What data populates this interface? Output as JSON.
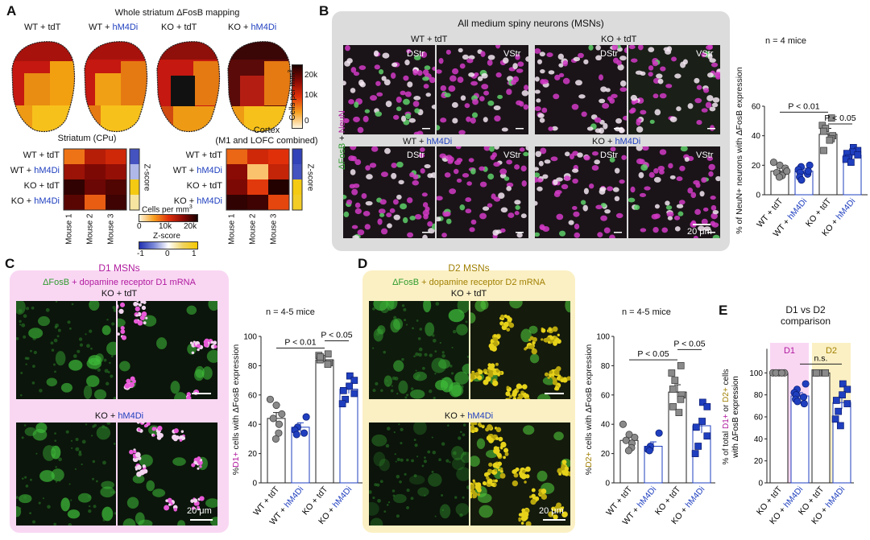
{
  "panels": {
    "A": {
      "letter": "A",
      "title": "Whole striatum ΔFosB mapping",
      "conditions": [
        {
          "base": "WT + ",
          "color_part": "tdT",
          "colored": false
        },
        {
          "base": "WT + ",
          "color_part": "hM4Di",
          "colored": true
        },
        {
          "base": "KO + ",
          "color_part": "tdT",
          "colored": false
        },
        {
          "base": "KO + ",
          "color_part": "hM4Di",
          "colored": true
        }
      ],
      "colorbar": {
        "label": "Cells per mm",
        "superscript": "3",
        "ticks": [
          "20k",
          "10k",
          "0"
        ]
      },
      "striatum_heatmap": {
        "title": "Striatum (CPu)",
        "rows": [
          "WT + tdT",
          "WT + hM4Di",
          "KO + tdT",
          "KO + hM4Di"
        ],
        "cols": [
          "Mouse 1",
          "Mouse 2",
          "Mouse 3"
        ],
        "values": [
          [
            0.35,
            0.62,
            0.55
          ],
          [
            0.7,
            0.78,
            0.72
          ],
          [
            0.95,
            0.82,
            0.88
          ],
          [
            0.86,
            0.4,
            0.92
          ]
        ],
        "zscore": [
          0.1,
          0.35,
          0.95,
          0.65
        ]
      },
      "cortex_heatmap": {
        "title_line1": "Cortex",
        "title_line2": "(M1 and LOFC combined)",
        "rows": [
          "WT + tdT",
          "WT + hM4Di",
          "KO + tdT",
          "KO + hM4Di"
        ],
        "cols": [
          "Mouse 1",
          "Mouse 2",
          "Mouse 3"
        ],
        "values": [
          [
            0.38,
            0.55,
            0.5
          ],
          [
            0.75,
            0.15,
            0.58
          ],
          [
            0.78,
            0.48,
            0.98
          ],
          [
            0.95,
            0.92,
            0.45
          ]
        ],
        "zscore": [
          0.05,
          0.1,
          0.95,
          0.9
        ]
      },
      "cells_scale": {
        "label": "Cells per mm",
        "superscript": "3",
        "ticks": [
          "0",
          "10k",
          "20k"
        ]
      },
      "zscore_scale": {
        "label": "Z-score",
        "ticks": [
          "-1",
          "0",
          "1"
        ]
      },
      "zscore_label": "Z-score"
    },
    "B": {
      "letter": "B",
      "title": "All medium spiny neurons (MSNs)",
      "image_labels": [
        "WT + tdT",
        "KO + tdT",
        "WT + ",
        "KO + "
      ],
      "hm4di": "hM4Di",
      "region_labels": [
        "DStr",
        "VStr"
      ],
      "stain_label_green": "ΔFosB",
      "stain_label_plus": " + ",
      "stain_label_magenta": "NeuN",
      "scale_bar": "20 μm",
      "n_note": "n = 4 mice",
      "ylabel": "% of NeuN+ neurons with ΔFosB expression",
      "sig": [
        "P < 0.01",
        "P < 0.05"
      ],
      "xlabels": [
        "WT + tdT",
        "WT + hM4Di",
        "KO + tdT",
        "KO + hM4Di"
      ]
    },
    "C": {
      "letter": "C",
      "title": "D1 MSNs",
      "subtitle_green": "ΔFosB",
      "subtitle_rest": " + dopamine receptor D1 mRNA",
      "image_labels": [
        "KO + tdT",
        "KO + "
      ],
      "hm4di": "hM4Di",
      "scale_bar": "20 μm",
      "n_note": "n = 4-5 mice",
      "ylabel_prefix": "%",
      "ylabel_colored": "D1+",
      "ylabel_suffix": " cells with ΔFosB expression",
      "sig": [
        "P < 0.01",
        "P < 0.05"
      ],
      "xlabels": [
        "WT + tdT",
        "WT + hM4Di",
        "KO + tdT",
        "KO + hM4Di"
      ]
    },
    "D": {
      "letter": "D",
      "title": "D2 MSNs",
      "subtitle_green": "ΔFosB",
      "subtitle_rest": " + dopamine receptor D2 mRNA",
      "image_labels": [
        "KO + tdT",
        "KO + "
      ],
      "hm4di": "hM4Di",
      "scale_bar": "20 μm",
      "n_note": "n = 4-5 mice",
      "ylabel_prefix": "%",
      "ylabel_colored": "D2+",
      "ylabel_suffix": " cells with ΔFosB expression",
      "sig": [
        "P < 0.05",
        "P < 0.05"
      ],
      "xlabels": [
        "WT + tdT",
        "WT + hM4Di",
        "KO + tdT",
        "KO + hM4Di"
      ]
    },
    "E": {
      "letter": "E",
      "title_line1": "D1 vs D2",
      "title_line2": "comparison",
      "group_labels": [
        "D1",
        "D2"
      ],
      "sig": "n.s.",
      "ylabel_line1_a": "% of total ",
      "ylabel_line1_d1": "D1+",
      "ylabel_line1_b": " or ",
      "ylabel_line1_d2": "D2+",
      "ylabel_line1_c": " cells",
      "ylabel_line2": "with ΔFosB expression",
      "xlabels": [
        "KO + tdT",
        "KO + hM4Di",
        "KO + tdT",
        "KO + hM4Di"
      ]
    }
  },
  "chart_data": [
    {
      "id": "B",
      "type": "bar",
      "title": "",
      "categories": [
        "WT + tdT",
        "WT + hM4Di",
        "KO + tdT",
        "KO + hM4Di"
      ],
      "values": [
        16,
        16,
        41,
        27
      ],
      "errors": [
        2,
        2,
        4,
        2
      ],
      "points": [
        [
          22,
          20,
          18,
          15,
          14,
          13,
          12,
          16
        ],
        [
          20,
          19,
          17,
          15,
          14,
          12,
          10,
          16
        ],
        [
          52,
          47,
          45,
          43,
          40,
          38,
          30,
          37
        ],
        [
          32,
          30,
          29,
          28,
          27,
          25,
          24,
          22
        ]
      ],
      "ylabel": "% of NeuN+ neurons with ΔFosB expression",
      "ylim": [
        0,
        60
      ],
      "yticks": [
        0,
        20,
        40,
        60
      ]
    },
    {
      "id": "C",
      "type": "bar",
      "title": "",
      "categories": [
        "WT + tdT",
        "WT + hM4Di",
        "KO + tdT",
        "KO + hM4Di"
      ],
      "values": [
        44,
        38,
        84,
        64
      ],
      "errors": [
        4,
        3,
        2,
        3
      ],
      "points": [
        [
          57,
          53,
          47,
          44,
          40,
          34,
          30
        ],
        [
          45,
          38,
          36,
          33,
          34
        ],
        [
          88,
          87,
          85,
          84,
          82,
          81,
          86
        ],
        [
          73,
          70,
          66,
          63,
          61,
          57,
          54
        ]
      ],
      "ylabel": "%D1+ cells with ΔFosB expression",
      "ylim": [
        0,
        100
      ],
      "yticks": [
        0,
        20,
        40,
        60,
        80,
        100
      ]
    },
    {
      "id": "D",
      "type": "bar",
      "title": "",
      "categories": [
        "WT + tdT",
        "WT + hM4Di",
        "KO + tdT",
        "KO + hM4Di"
      ],
      "values": [
        29,
        25,
        62,
        39
      ],
      "errors": [
        3,
        3,
        5,
        5
      ],
      "points": [
        [
          40,
          33,
          31,
          29,
          27,
          24,
          22
        ],
        [
          34,
          25,
          23,
          22
        ],
        [
          80,
          75,
          70,
          64,
          60,
          57,
          52,
          48
        ],
        [
          55,
          52,
          42,
          38,
          32,
          25,
          20
        ]
      ],
      "ylabel": "%D2+ cells with ΔFosB expression",
      "ylim": [
        0,
        100
      ],
      "yticks": [
        0,
        20,
        40,
        60,
        80,
        100
      ]
    },
    {
      "id": "E",
      "type": "bar",
      "title": "D1 vs D2 comparison",
      "categories": [
        "KO + tdT",
        "KO + hM4Di",
        "KO + tdT",
        "KO + hM4Di"
      ],
      "groups": [
        "D1",
        "D1",
        "D2",
        "D2"
      ],
      "values": [
        100,
        79,
        100,
        73
      ],
      "errors": [
        0,
        3,
        0,
        6
      ],
      "points": [
        [
          100,
          100,
          100,
          100,
          100
        ],
        [
          90,
          85,
          82,
          80,
          78,
          76,
          74,
          72
        ],
        [
          100,
          100,
          100,
          100,
          100
        ],
        [
          90,
          85,
          80,
          75,
          72,
          65,
          58,
          52
        ]
      ],
      "ylabel": "% of total D1+ or D2+ cells with ΔFosB expression",
      "ylim": [
        0,
        120
      ],
      "yticks": [
        0,
        20,
        40,
        60,
        80,
        100
      ]
    }
  ],
  "colors": {
    "blue": "#1f3fbf",
    "grey": "#8a8a8a",
    "magenta": "#b0199e",
    "olive": "#a07f00",
    "green": "#2e9b2e",
    "d1_bg": "#f9d7f3",
    "d2_bg": "#fbf0c4",
    "b_bg": "#dcdcdc"
  }
}
